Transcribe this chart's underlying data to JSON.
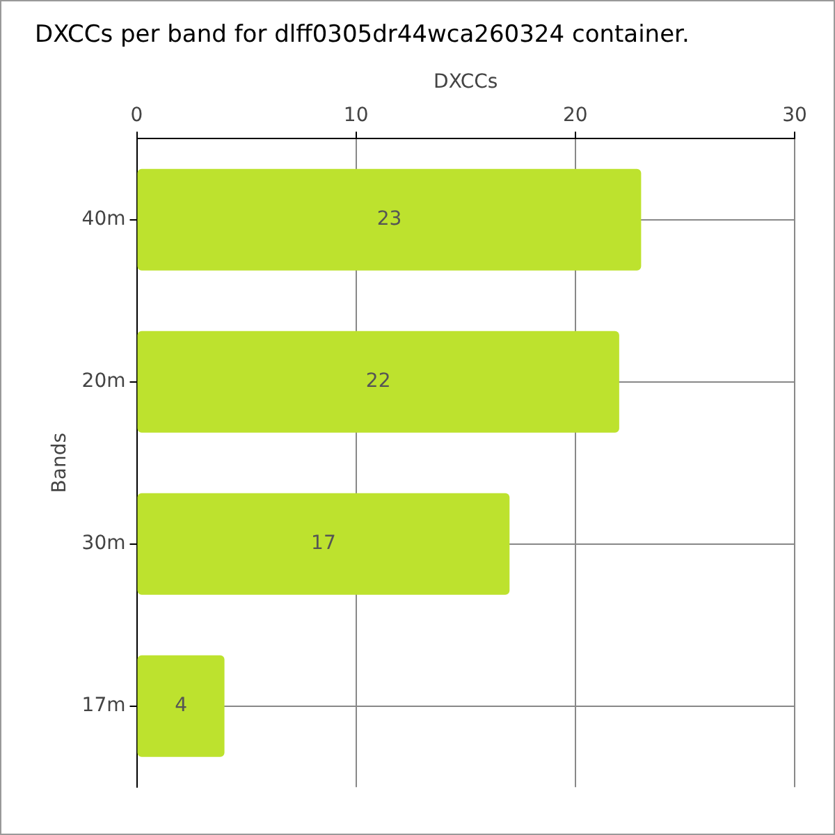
{
  "chart_data": {
    "type": "bar",
    "orientation": "horizontal",
    "title": "DXCCs per band for dlff0305dr44wca260324 container.",
    "xlabel": "DXCCs",
    "ylabel": "Bands",
    "categories": [
      "40m",
      "20m",
      "30m",
      "17m"
    ],
    "values": [
      23,
      22,
      17,
      4
    ],
    "color": "#bde22e",
    "xlim": [
      0,
      30
    ],
    "xticks": [
      0,
      10,
      20,
      30
    ],
    "grid": true,
    "data_labels": true
  }
}
